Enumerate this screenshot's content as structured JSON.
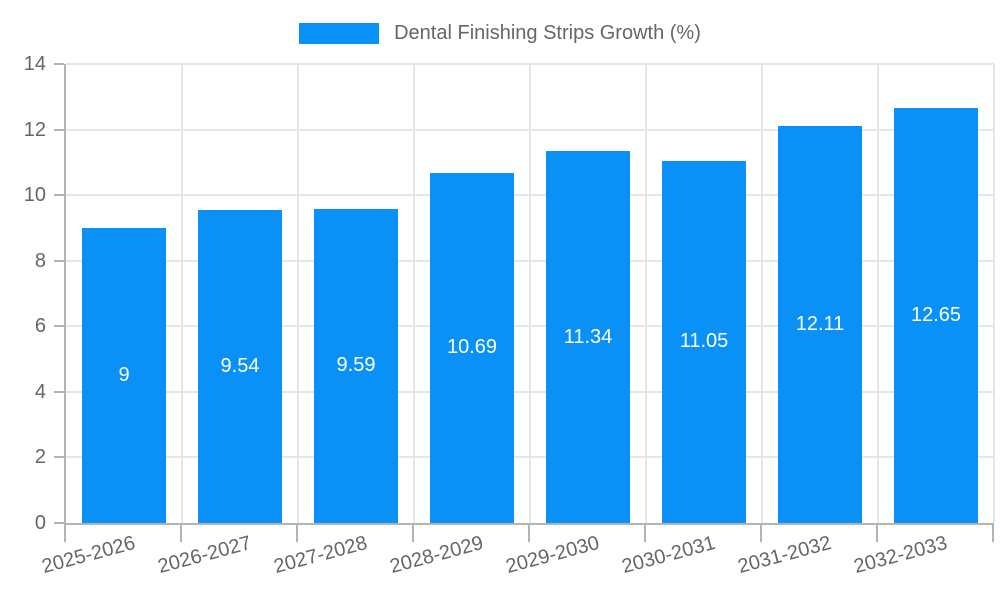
{
  "chart_data": {
    "type": "bar",
    "title": "Dental Finishing Strips Growth (%)",
    "legend": {
      "label": "Dental Finishing Strips Growth (%)",
      "position": "top"
    },
    "categories": [
      "2025-2026",
      "2026-2027",
      "2027-2028",
      "2028-2029",
      "2029-2030",
      "2030-2031",
      "2031-2032",
      "2032-2033"
    ],
    "series": [
      {
        "name": "Dental Finishing Strips Growth (%)",
        "values": [
          9,
          9.54,
          9.59,
          10.69,
          11.34,
          11.05,
          12.11,
          12.65
        ],
        "value_labels": [
          "9",
          "9.54",
          "9.59",
          "10.69",
          "11.34",
          "11.05",
          "12.11",
          "12.65"
        ]
      }
    ],
    "xlabel": "",
    "ylabel": "",
    "ylim": [
      0,
      14
    ],
    "yticks": [
      0,
      2,
      4,
      6,
      8,
      10,
      12,
      14
    ],
    "grid": true,
    "x_label_rotation_deg": -15,
    "value_label_position": "center",
    "colors": {
      "bar": "#0991f8",
      "value_text": "#ffffff",
      "tick_text": "#666666",
      "legend_text": "#666666",
      "grid": "#e6e6e6",
      "axis": "#b3b3b3",
      "background": "#ffffff"
    }
  }
}
